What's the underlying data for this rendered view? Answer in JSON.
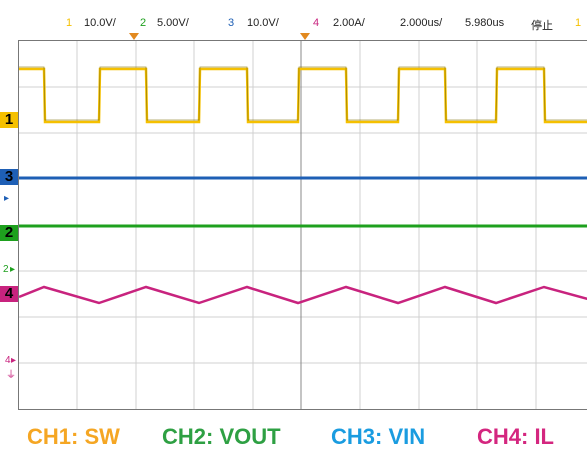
{
  "header": {
    "ch1_num": "1",
    "ch1_scale": "10.0V/",
    "ch2_num": "2",
    "ch2_scale": "5.00V/",
    "ch3_num": "3",
    "ch3_scale": "10.0V/",
    "ch4_num": "4",
    "ch4_scale": "2.00A/",
    "timebase": "2.000us/",
    "time_offset": "5.980us",
    "run_state": "停止",
    "trig_num": "1"
  },
  "markers": {
    "ch1": "1",
    "ch3": "3",
    "ch2": "2",
    "ch4": "4",
    "ch2_small": "2",
    "ch4_small": "4"
  },
  "legend": {
    "ch1": "CH1:  SW",
    "ch2": "CH2:  VOUT",
    "ch3": "CH3:  VIN",
    "ch4": "CH4:  IL"
  },
  "colors": {
    "ch1": "#f5c000",
    "ch2": "#1ea01e",
    "ch3": "#1e5fb5",
    "ch4": "#c8237e",
    "trigger": "#e2891f",
    "grid": "#c8c8c8"
  },
  "icons": {
    "trigger_marker": "trigger-position-icon",
    "ground": "ground-icon"
  }
}
